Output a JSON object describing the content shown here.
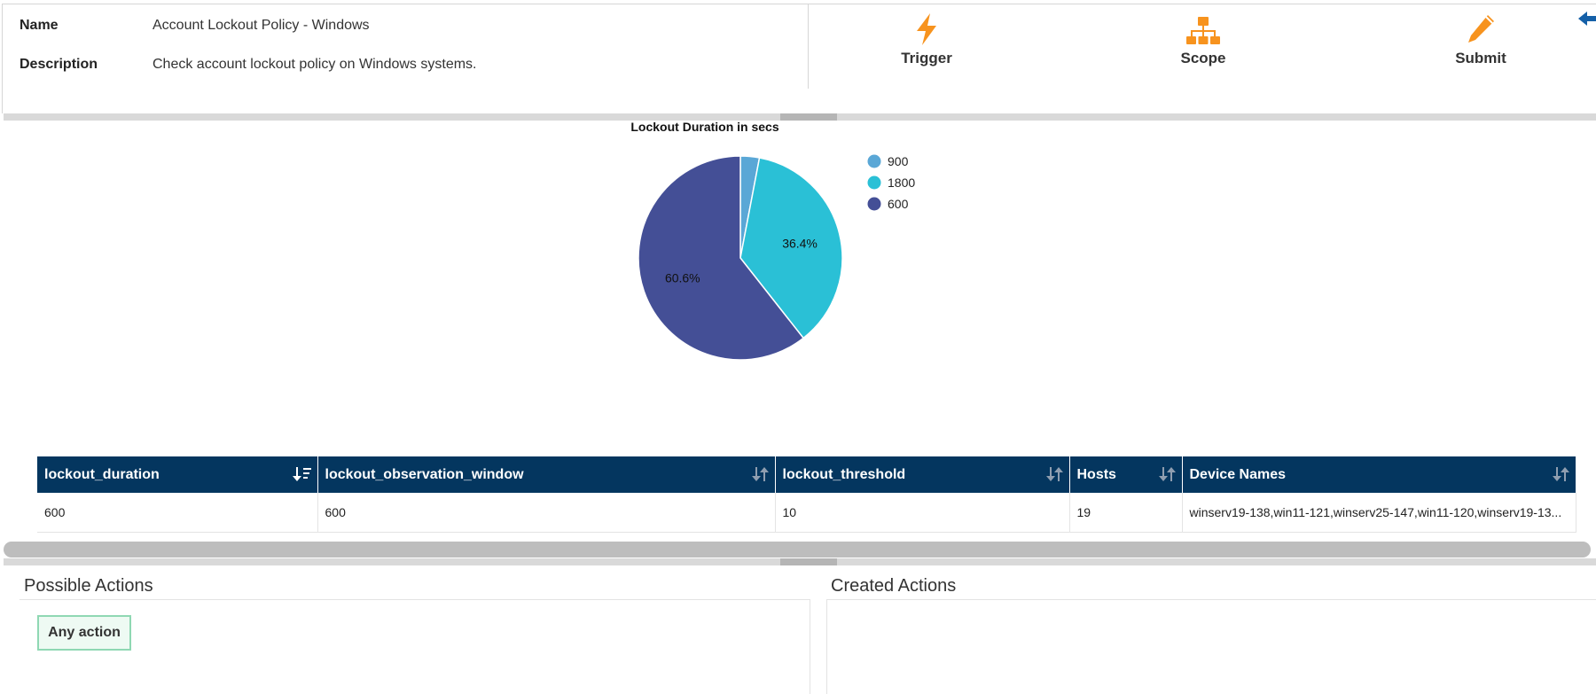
{
  "policy": {
    "name_label": "Name",
    "name_value": "Account Lockout Policy - Windows",
    "description_label": "Description",
    "description_value": "Check account lockout policy on Windows systems."
  },
  "toolbar": {
    "trigger_label": "Trigger",
    "scope_label": "Scope",
    "submit_label": "Submit",
    "icon_color": "#f7931e"
  },
  "chart_data": {
    "type": "pie",
    "title": "Lockout Duration in secs",
    "legend_position": "right",
    "slices": [
      {
        "label": "900",
        "value": 3.0,
        "color": "#5aa7d6",
        "show_label": false
      },
      {
        "label": "1800",
        "value": 36.4,
        "color": "#2ac0d6",
        "show_label": true,
        "display": "36.4%"
      },
      {
        "label": "600",
        "value": 60.6,
        "color": "#444f96",
        "show_label": true,
        "display": "60.6%"
      }
    ]
  },
  "table": {
    "header_color": "#04365f",
    "columns": [
      "lockout_duration",
      "lockout_observation_window",
      "lockout_threshold",
      "Hosts",
      "Device Names"
    ],
    "rows": [
      [
        "600",
        "600",
        "10",
        "19",
        "winserv19-138,win11-121,winserv25-147,win11-120,winserv19-13..."
      ]
    ]
  },
  "actions": {
    "possible_title": "Possible Actions",
    "created_title": "Created Actions",
    "any_action_label": "Any action"
  }
}
